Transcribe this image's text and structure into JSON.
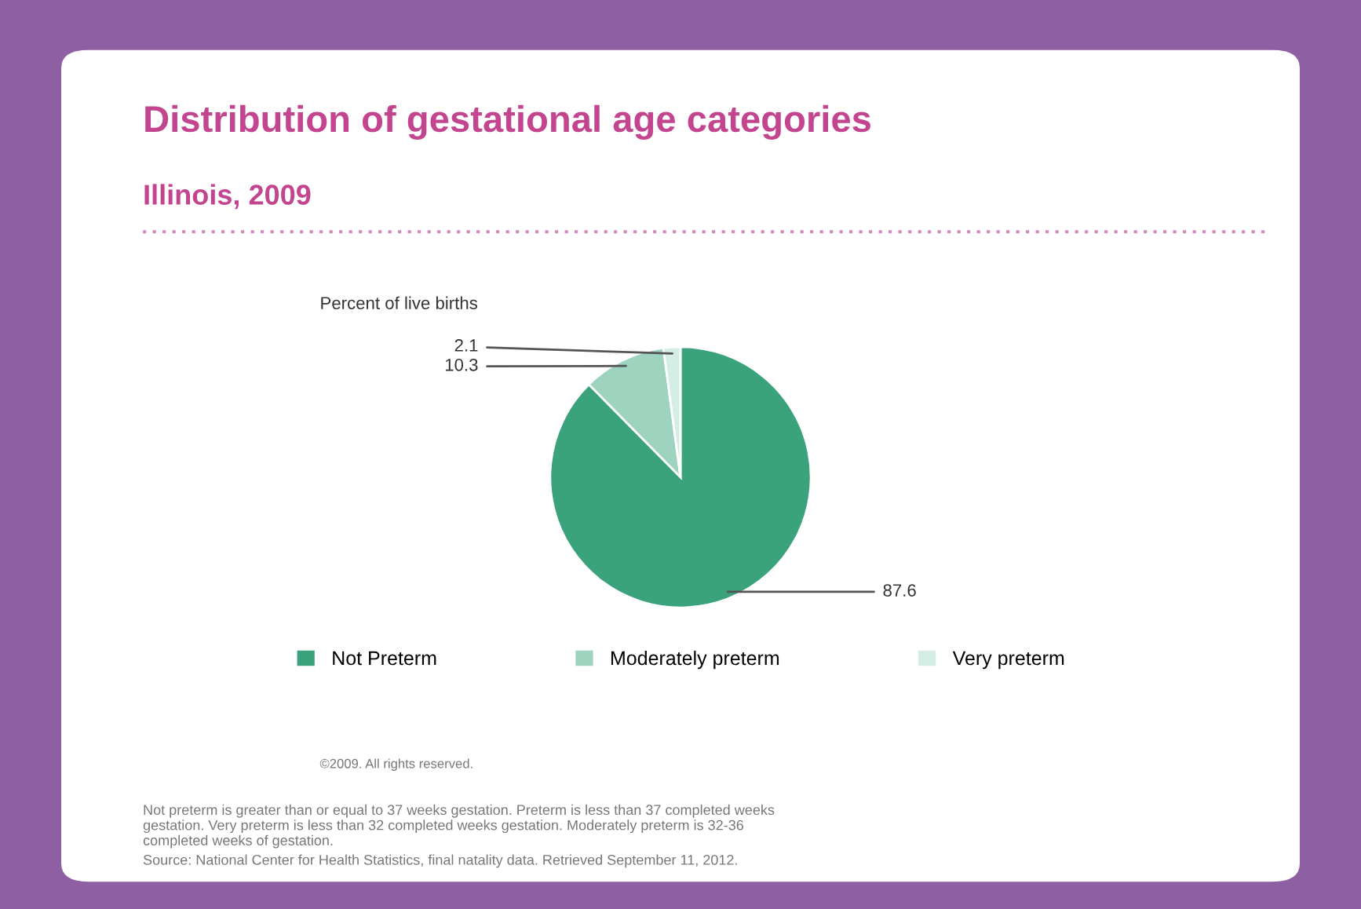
{
  "chart_data": {
    "type": "pie",
    "title": "Distribution of gestational age categories",
    "subtitle": "Illinois, 2009",
    "ylabel": "Percent of live births",
    "categories": [
      "Not Preterm",
      "Moderately preterm",
      "Very preterm"
    ],
    "values": [
      87.6,
      10.3,
      2.1
    ],
    "colors": [
      "#3aa37b",
      "#9dd3bf",
      "#d5eee5"
    ],
    "data_labels": true,
    "legend": "bottom",
    "annotations": [
      "©2009. All rights reserved.",
      "Not preterm is greater than or equal to 37 weeks gestation. Preterm is less than 37 completed weeks\ngestation. Very preterm is less than 32 completed weeks gestation. Moderately preterm is 32-36\ncompleted weeks of gestation.",
      "Source: National Center for Health Statistics, final natality data. Retrieved September 11, 2012."
    ]
  }
}
